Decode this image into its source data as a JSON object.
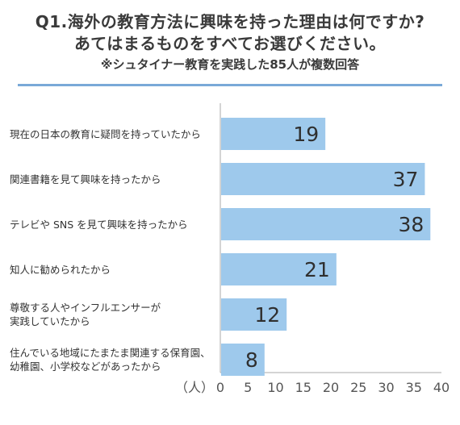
{
  "header": {
    "title_line1": "Q1.海外の教育方法に興味を持った理由は何ですか?",
    "title_line2": "あてはまるものをすべてお選びください。",
    "subtitle": "※シュタイナー教育を実践した85人が複数回答"
  },
  "chart_data": {
    "type": "bar",
    "orientation": "horizontal",
    "title": "Q1.海外の教育方法に興味を持った理由は何ですか? あてはまるものをすべてお選びください。",
    "subtitle": "※シュタイナー教育を実践した85人が複数回答",
    "categories": [
      [
        "現在の日本の教育に疑問を持っていたから"
      ],
      [
        "関連書籍を見て興味を持ったから"
      ],
      [
        "テレビや SNS を見て興味を持ったから"
      ],
      [
        "知人に勧められたから"
      ],
      [
        "尊敬する人やインフルエンサーが",
        "実践していたから"
      ],
      [
        "住んでいる地域にたまたま関連する保育園、",
        "幼稚園、小学校などがあったから"
      ]
    ],
    "values": [
      19,
      37,
      38,
      21,
      12,
      8
    ],
    "xlabel": "（人）",
    "xlim": [
      0,
      40
    ],
    "xticks": [
      0,
      5,
      10,
      15,
      20,
      25,
      30,
      35,
      40
    ],
    "data_labels": true,
    "grid": false,
    "legend": "none",
    "colors": {
      "bar": "#9ec9ec",
      "axis": "#aaaaaa",
      "title_rule": "#7aa9d8",
      "label": "#333333"
    }
  }
}
